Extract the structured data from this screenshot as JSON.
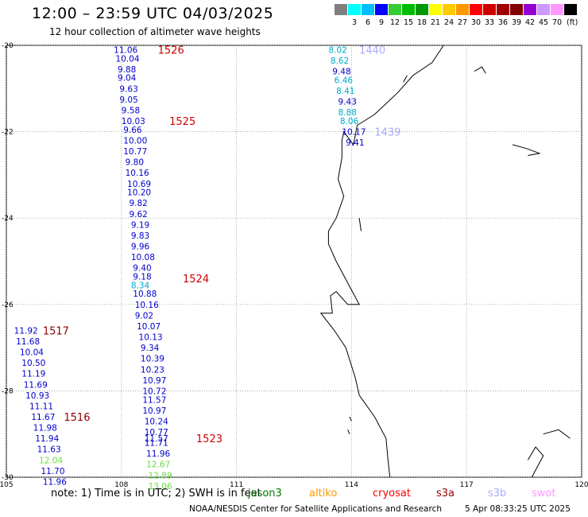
{
  "header": {
    "title": "12:00 – 23:59 UTC 04/03/2025",
    "subtitle": "12 hour collection of altimeter wave heights"
  },
  "legend": {
    "unit": "(ft)",
    "bins": [
      {
        "label": "",
        "color": "#7f7f7f"
      },
      {
        "label": "3",
        "color": "#00ffff"
      },
      {
        "label": "6",
        "color": "#00bfff"
      },
      {
        "label": "9",
        "color": "#0000ff"
      },
      {
        "label": "12",
        "color": "#33cc33"
      },
      {
        "label": "15",
        "color": "#00bb00"
      },
      {
        "label": "18",
        "color": "#009900"
      },
      {
        "label": "21",
        "color": "#ffff00"
      },
      {
        "label": "24",
        "color": "#ffcc00"
      },
      {
        "label": "27",
        "color": "#ff9900"
      },
      {
        "label": "30",
        "color": "#ff0000"
      },
      {
        "label": "33",
        "color": "#d00000"
      },
      {
        "label": "36",
        "color": "#a00000"
      },
      {
        "label": "39",
        "color": "#800000"
      },
      {
        "label": "42",
        "color": "#9400d3"
      },
      {
        "label": "45",
        "color": "#cc99ff"
      },
      {
        "label": "70",
        "color": "#ff99ff"
      },
      {
        "label": "",
        "color": "#000000"
      }
    ]
  },
  "map": {
    "lon_ticks": [
      "105",
      "108",
      "111",
      "114",
      "117",
      "120"
    ],
    "lat_ticks": [
      "-20",
      "-22",
      "-24",
      "-26",
      "-28",
      "-30"
    ],
    "lon_range": [
      105,
      120
    ],
    "lat_range": [
      -30,
      -20
    ]
  },
  "tracks": [
    {
      "id": "1526",
      "label_color": "#cc0000",
      "label_at": [
        108.95,
        -20.1
      ],
      "points": [
        {
          "v": "11.06",
          "lon": 107.8,
          "lat": -20.1,
          "c": "#0000cc"
        },
        {
          "v": "10.04",
          "lon": 107.85,
          "lat": -20.3,
          "c": "#0000cc"
        },
        {
          "v": "9.88",
          "lon": 107.9,
          "lat": -20.55,
          "c": "#0000cc"
        },
        {
          "v": "9.04",
          "lon": 107.9,
          "lat": -20.75,
          "c": "#0000cc"
        },
        {
          "v": "9.63",
          "lon": 107.95,
          "lat": -21.0,
          "c": "#0000cc"
        },
        {
          "v": "9.05",
          "lon": 107.95,
          "lat": -21.25,
          "c": "#0000cc"
        },
        {
          "v": "9.58",
          "lon": 108.0,
          "lat": -21.5,
          "c": "#0000cc"
        }
      ]
    },
    {
      "id": "1525",
      "label_color": "#cc0000",
      "label_at": [
        109.25,
        -21.75
      ],
      "points": [
        {
          "v": "10.03",
          "lon": 108.0,
          "lat": -21.75,
          "c": "#0000cc"
        },
        {
          "v": "9.66",
          "lon": 108.05,
          "lat": -21.95,
          "c": "#0000cc"
        },
        {
          "v": "10.00",
          "lon": 108.05,
          "lat": -22.2,
          "c": "#0000cc"
        },
        {
          "v": "10.77",
          "lon": 108.05,
          "lat": -22.45,
          "c": "#0000cc"
        },
        {
          "v": "9.80",
          "lon": 108.1,
          "lat": -22.7,
          "c": "#0000cc"
        },
        {
          "v": "10.16",
          "lon": 108.1,
          "lat": -22.95,
          "c": "#0000cc"
        },
        {
          "v": "10.69",
          "lon": 108.15,
          "lat": -23.2,
          "c": "#0000cc"
        },
        {
          "v": "10.20",
          "lon": 108.15,
          "lat": -23.4,
          "c": "#0000cc"
        },
        {
          "v": "9.82",
          "lon": 108.2,
          "lat": -23.65,
          "c": "#0000cc"
        },
        {
          "v": "9.62",
          "lon": 108.2,
          "lat": -23.9,
          "c": "#0000cc"
        },
        {
          "v": "9.19",
          "lon": 108.25,
          "lat": -24.15,
          "c": "#0000cc"
        }
      ]
    },
    {
      "id": "1524",
      "label_color": "#cc0000",
      "label_at": [
        109.6,
        -25.4
      ],
      "points": [
        {
          "v": "9.83",
          "lon": 108.25,
          "lat": -24.4,
          "c": "#0000cc"
        },
        {
          "v": "9.96",
          "lon": 108.25,
          "lat": -24.65,
          "c": "#0000cc"
        },
        {
          "v": "10.08",
          "lon": 108.25,
          "lat": -24.9,
          "c": "#0000cc"
        },
        {
          "v": "9.40",
          "lon": 108.3,
          "lat": -25.15,
          "c": "#0000cc"
        },
        {
          "v": "9.18",
          "lon": 108.3,
          "lat": -25.35,
          "c": "#0000cc"
        },
        {
          "v": "8.34",
          "lon": 108.25,
          "lat": -25.55,
          "c": "#00aacc"
        },
        {
          "v": "10.88",
          "lon": 108.3,
          "lat": -25.75,
          "c": "#0000cc"
        },
        {
          "v": "10.16",
          "lon": 108.35,
          "lat": -26.0,
          "c": "#0000cc"
        },
        {
          "v": "9.02",
          "lon": 108.35,
          "lat": -26.25,
          "c": "#0000cc"
        },
        {
          "v": "10.07",
          "lon": 108.4,
          "lat": -26.5,
          "c": "#0000cc"
        },
        {
          "v": "10.13",
          "lon": 108.45,
          "lat": -26.75,
          "c": "#0000cc"
        },
        {
          "v": "9.34",
          "lon": 108.5,
          "lat": -27.0,
          "c": "#0000cc"
        },
        {
          "v": "10.39",
          "lon": 108.5,
          "lat": -27.25,
          "c": "#0000cc"
        },
        {
          "v": "10.23",
          "lon": 108.5,
          "lat": -27.5,
          "c": "#0000cc"
        },
        {
          "v": "10.97",
          "lon": 108.55,
          "lat": -27.75,
          "c": "#0000cc"
        },
        {
          "v": "10.72",
          "lon": 108.55,
          "lat": -28.0,
          "c": "#0000cc"
        },
        {
          "v": "11.57",
          "lon": 108.55,
          "lat": -28.2,
          "c": "#0000cc"
        }
      ]
    },
    {
      "id": "1523",
      "label_color": "#cc0000",
      "label_at": [
        109.95,
        -29.1
      ],
      "points": [
        {
          "v": "10.97",
          "lon": 108.55,
          "lat": -28.45,
          "c": "#0000cc"
        },
        {
          "v": "10.24",
          "lon": 108.6,
          "lat": -28.7,
          "c": "#0000cc"
        },
        {
          "v": "10.77",
          "lon": 108.6,
          "lat": -28.95,
          "c": "#0000cc"
        },
        {
          "v": "11.57",
          "lon": 108.6,
          "lat": -29.1,
          "c": "#0000cc"
        },
        {
          "v": "11.71",
          "lon": 108.6,
          "lat": -29.2,
          "c": "#0000cc"
        },
        {
          "v": "11.96",
          "lon": 108.65,
          "lat": -29.45,
          "c": "#0000cc"
        },
        {
          "v": "12.67",
          "lon": 108.65,
          "lat": -29.7,
          "c": "#66dd44"
        },
        {
          "v": "12.89",
          "lon": 108.7,
          "lat": -29.95,
          "c": "#66dd44"
        },
        {
          "v": "13.06",
          "lon": 108.7,
          "lat": -30.2,
          "c": "#66dd44"
        }
      ]
    },
    {
      "id": "1517",
      "label_color": "#880000",
      "label_at": [
        105.95,
        -26.6
      ],
      "points": [
        {
          "v": "11.92",
          "lon": 105.2,
          "lat": -26.6,
          "c": "#0000cc"
        },
        {
          "v": "11.68",
          "lon": 105.25,
          "lat": -26.85,
          "c": "#0000cc"
        },
        {
          "v": "10.04",
          "lon": 105.35,
          "lat": -27.1,
          "c": "#0000cc"
        },
        {
          "v": "10.50",
          "lon": 105.4,
          "lat": -27.35,
          "c": "#0000cc"
        },
        {
          "v": "11.19",
          "lon": 105.4,
          "lat": -27.6,
          "c": "#0000cc"
        },
        {
          "v": "11.69",
          "lon": 105.45,
          "lat": -27.85,
          "c": "#0000cc"
        },
        {
          "v": "10.93",
          "lon": 105.5,
          "lat": -28.1,
          "c": "#0000cc"
        },
        {
          "v": "11.11",
          "lon": 105.6,
          "lat": -28.35,
          "c": "#0000cc"
        }
      ]
    },
    {
      "id": "1516",
      "label_color": "#880000",
      "label_at": [
        106.5,
        -28.6
      ],
      "points": [
        {
          "v": "11.67",
          "lon": 105.65,
          "lat": -28.6,
          "c": "#0000cc"
        },
        {
          "v": "11.98",
          "lon": 105.7,
          "lat": -28.85,
          "c": "#0000cc"
        },
        {
          "v": "11.94",
          "lon": 105.75,
          "lat": -29.1,
          "c": "#0000cc"
        },
        {
          "v": "11.63",
          "lon": 105.8,
          "lat": -29.35,
          "c": "#0000cc"
        },
        {
          "v": "12.04",
          "lon": 105.85,
          "lat": -29.6,
          "c": "#66dd44"
        },
        {
          "v": "11.70",
          "lon": 105.9,
          "lat": -29.85,
          "c": "#0000cc"
        },
        {
          "v": "11.96",
          "lon": 105.95,
          "lat": -30.1,
          "c": "#0000cc"
        }
      ]
    },
    {
      "id": "1440",
      "label_color": "#aaaaff",
      "label_at": [
        114.2,
        -20.1
      ],
      "points": [
        {
          "v": "8.02",
          "lon": 113.4,
          "lat": -20.1,
          "c": "#00aacc"
        },
        {
          "v": "8.62",
          "lon": 113.45,
          "lat": -20.35,
          "c": "#00aacc"
        },
        {
          "v": "9.48",
          "lon": 113.5,
          "lat": -20.6,
          "c": "#0000cc"
        },
        {
          "v": "6.46",
          "lon": 113.55,
          "lat": -20.8,
          "c": "#00aacc"
        },
        {
          "v": "8.41",
          "lon": 113.6,
          "lat": -21.05,
          "c": "#00aacc"
        },
        {
          "v": "9.43",
          "lon": 113.65,
          "lat": -21.3,
          "c": "#0000cc"
        },
        {
          "v": "8.88",
          "lon": 113.65,
          "lat": -21.55,
          "c": "#00aacc"
        },
        {
          "v": "8.06",
          "lon": 113.7,
          "lat": -21.75,
          "c": "#00aacc"
        }
      ]
    },
    {
      "id": "1439",
      "label_color": "#aaaaff",
      "label_at": [
        114.6,
        -22.0
      ],
      "points": [
        {
          "v": "10.17",
          "lon": 113.75,
          "lat": -22.0,
          "c": "#0000cc"
        },
        {
          "v": "9.41",
          "lon": 113.85,
          "lat": -22.25,
          "c": "#0000cc"
        }
      ]
    }
  ],
  "notes": {
    "text": "note:  1) Time is in UTC;  2) SWH is in feet",
    "satellites": [
      {
        "name": "jason3",
        "color": "#007700"
      },
      {
        "name": "altiko",
        "color": "#ff9900"
      },
      {
        "name": "cryosat",
        "color": "#ff0000"
      },
      {
        "name": "s3a",
        "color": "#990000"
      },
      {
        "name": "s3b",
        "color": "#aaaaff"
      },
      {
        "name": "swot",
        "color": "#ff99ff"
      }
    ]
  },
  "footer": {
    "credit": "NOAA/NESDIS Center for Satellite Applications and Research",
    "timestamp": "5 Apr 08:33:25 UTC 2025"
  }
}
